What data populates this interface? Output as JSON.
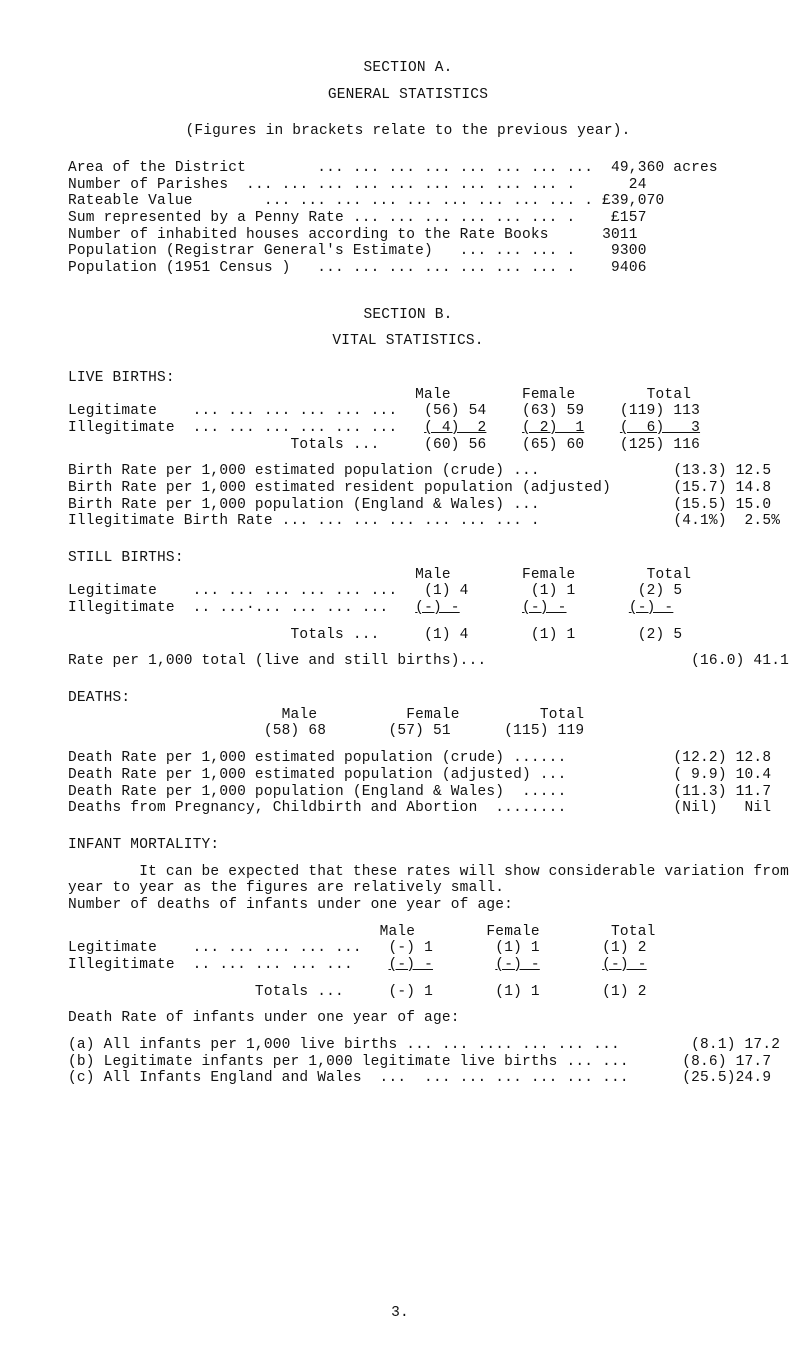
{
  "headings": {
    "section_a": "SECTION A.",
    "general_stats": "GENERAL STATISTICS",
    "figures_note": "(Figures in brackets relate to the previous year).",
    "section_b": "SECTION B.",
    "vital_stats": "VITAL STATISTICS.",
    "live_births": "LIVE BIRTHS:",
    "still_births": "STILL BIRTHS:",
    "deaths": "DEATHS:",
    "infant_mortality": "INFANT MORTALITY:"
  },
  "col_labels": {
    "male": "Male",
    "female": "Female",
    "total": "Total"
  },
  "area_block": {
    "l1_label": "Area of the District",
    "l1_dots": "        ... ... ... ... ... ... ... ...",
    "l1_val": "  49,360 acres",
    "l2_label": "Number of Parishes",
    "l2_dots": "  ... ... ... ... ... ... ... ... ... .",
    "l2_val": "      24",
    "l3_label": "Rateable Value",
    "l3_dots": "        ... ... ... ... ... ... ... ... ... .",
    "l3_val": " £39,070",
    "l4_label": "Sum represented by a Penny Rate ... ... ... ... ... ... .",
    "l4_val": "    £157",
    "l5_label": "Number of inhabited houses according to the Rate Books",
    "l5_val": "      3011",
    "l6_label": "Population (Registrar General's Estimate)   ... ... ... .",
    "l6_val": "    9300",
    "l7_label": "Population (1951 Census )",
    "l7_dots": "   ... ... ... ... ... ... ... .",
    "l7_val": "    9406"
  },
  "live": {
    "legit_label": "Legitimate    ... ... ... ... ... ...",
    "illeg_label": "Illegitimate  ... ... ... ... ... ...",
    "totals_label": "                         Totals ...",
    "legit_m": "(56) 54",
    "legit_f": "(63) 59",
    "legit_t": "(119) 113",
    "illeg_m": "( 4)  2",
    "illeg_f": "( 2)  1",
    "illeg_t": "(  6)   3",
    "tot_m": "(60) 56",
    "tot_f": "(65) 60",
    "tot_t": "(125) 116",
    "br1": "Birth Rate per 1,000 estimated population (crude) ...",
    "br1_v": "(13.3) 12.5",
    "br2": "Birth Rate per 1,000 estimated resident population (adjusted)",
    "br2_v": "(15.7) 14.8",
    "br3": "Birth Rate per 1,000 population (England & Wales) ...",
    "br3_v": "(15.5) 15.0",
    "br4": "Illegitimate Birth Rate ... ... ... ... ... ... ... .",
    "br4_v": "(4.1%)  2.5%"
  },
  "still": {
    "legit_label": "Legitimate    ... ... ... ... ... ...",
    "illeg_label": "Illegitimate  .. ...·... ... ... ...",
    "totals_label": "                         Totals ...",
    "legit_m": "(1) 4",
    "legit_f": "(1) 1",
    "legit_t": "(2) 5",
    "illeg_m": "(-) -",
    "illeg_f": "(-) -",
    "illeg_t": "(-) -",
    "tot_m": "(1) 4",
    "tot_f": "(1) 1",
    "tot_t": "(2) 5",
    "rate_label": "Rate per 1,000 total (live and still births)...",
    "rate_val": "(16.0) 41.1"
  },
  "deaths": {
    "triple_m": "(58) 68",
    "triple_f": "(57) 51",
    "triple_t": "(115) 119",
    "dr1": "Death Rate per 1,000 estimated population (crude) ......",
    "dr1_v": "(12.2) 12.8",
    "dr2": "Death Rate per 1,000 estimated population (adjusted) ...",
    "dr2_v": "( 9.9) 10.4",
    "dr3": "Death Rate per 1,000 population (England & Wales)  .....",
    "dr3_v": "(11.3) 11.7",
    "dr4": "Deaths from Pregnancy, Childbirth and Abortion  ........",
    "dr4_v": "(Nil)   Nil"
  },
  "infant": {
    "para1": "        It can be expected that these rates will show considerable variation from",
    "para2": "year to year as the figures are relatively small.",
    "para3": "Number of deaths of infants under one year of age:",
    "legit_label": "Legitimate    ... ... ... ... ...",
    "illeg_label": "Illegitimate  .. ... ... ... ...",
    "totals_label": "                     Totals ...",
    "legit_m": "(-) 1",
    "legit_f": "(1) 1",
    "legit_t": "(1) 2",
    "illeg_m": "(-) -",
    "illeg_f": "(-) -",
    "illeg_t": "(-) -",
    "tot_m": "(-) 1",
    "tot_f": "(1) 1",
    "tot_t": "(1) 2",
    "under_age": "Death Rate of infants under one year of age:",
    "a": "(a) All infants per 1,000 live births ... ... .... ... ... ...",
    "a_v": "(8.1) 17.2",
    "b": "(b) Legitimate infants per 1,000 legitimate live births ... ...",
    "b_v": "(8.6) 17.7",
    "c": "(c) All Infants England and Wales  ...  ... ... ... ... ... ...",
    "c_v": "(25.5)24.9"
  },
  "footer": "3."
}
